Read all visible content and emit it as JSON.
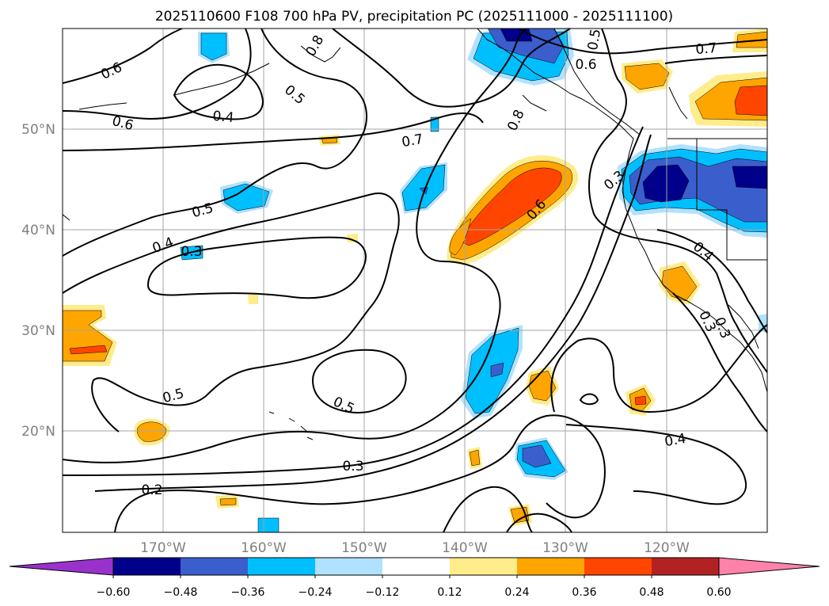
{
  "chart_data": {
    "type": "contour-map",
    "title": "2025110600 F108 700 hPa PV, precipitation PC (2025111000 - 2025111100)",
    "grid": true,
    "axes": {
      "lon_ticks": [
        "170°W",
        "160°W",
        "150°W",
        "140°W",
        "130°W",
        "120°W"
      ],
      "lat_ticks": [
        "50°N",
        "40°N",
        "30°N",
        "20°N"
      ]
    },
    "colorbar": {
      "position": "bottom",
      "extend": "both",
      "tick_labels": [
        "−0.60",
        "−0.48",
        "−0.36",
        "−0.24",
        "−0.12",
        "0.12",
        "0.24",
        "0.36",
        "0.48",
        "0.60"
      ],
      "colors": [
        "#9932cc",
        "#00008b",
        "#3a5fcd",
        "#00bfff",
        "#b0e2ff",
        "#ffffff",
        "#ffec8b",
        "#ffa500",
        "#ff4500",
        "#b22222",
        "#ff82ab"
      ]
    },
    "contour_labels": [
      "0.6",
      "0.6",
      "0.5",
      "0.4",
      "0.8",
      "0.5",
      "0.6",
      "0.7",
      "0.7",
      "0.8",
      "0.3",
      "0.5",
      "0.4",
      "0.3",
      "0.6",
      "0.4",
      "0.3",
      "0.5",
      "0.5",
      "0.3",
      "0.2",
      "0.4",
      "0.3"
    ]
  }
}
